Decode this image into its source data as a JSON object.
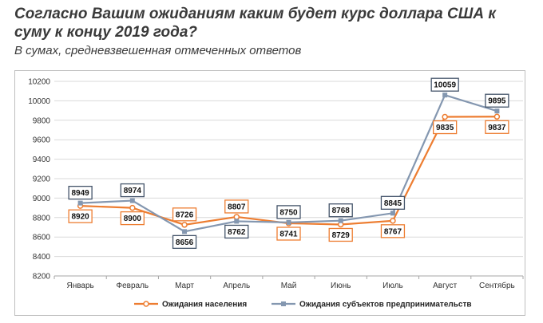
{
  "header": {
    "title": "Согласно Вашим ожиданиям каким будет курс доллара США к суму к концу 2019 года?",
    "subtitle": "В сумах, средневзвешенная отмеченных ответов"
  },
  "colors": {
    "population": "#ED7D31",
    "business": "#8497B0",
    "population_label_border": "#ED7D31",
    "business_label_border": "#44546A"
  },
  "chart_data": {
    "type": "line",
    "categories": [
      "Январь",
      "Февраль",
      "Март",
      "Апрель",
      "Май",
      "Июнь",
      "Июль",
      "Август",
      "Сентябрь"
    ],
    "series": [
      {
        "name": "Ожидания населения",
        "values": [
          8920,
          8900,
          8726,
          8807,
          8741,
          8729,
          8767,
          9835,
          9837
        ]
      },
      {
        "name": "Ожидания субъектов предпринимательств",
        "values": [
          8949,
          8974,
          8656,
          8762,
          8750,
          8768,
          8845,
          10059,
          9895
        ]
      }
    ],
    "ylim": [
      8200,
      10200
    ],
    "ystep": 200,
    "yticks": [
      "8200",
      "8400",
      "8600",
      "8800",
      "9000",
      "9200",
      "9400",
      "9600",
      "9800",
      "10000",
      "10200"
    ],
    "grid": true,
    "legend": "bottom"
  }
}
